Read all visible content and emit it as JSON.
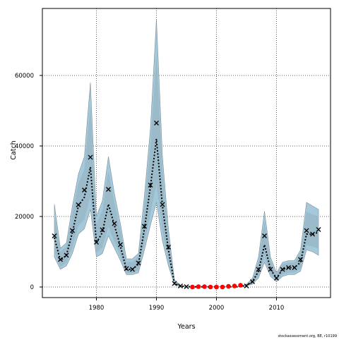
{
  "chart_data": {
    "type": "line",
    "title": "",
    "xlabel": "Years",
    "ylabel": "Catch",
    "xlim": [
      1971,
      2019
    ],
    "ylim": [
      -3000,
      79000
    ],
    "x_ticks": [
      1980,
      1990,
      2000,
      2010
    ],
    "y_ticks": [
      0,
      20000,
      40000,
      60000
    ],
    "grid": true,
    "grid_style": "dotted",
    "source_note": "stockassessment.org, BE, r10199",
    "colors": {
      "band_outer": "#9fc6d9",
      "band_inner": "#9ab8c8",
      "band_edge": "#7f8f99",
      "estimate_line": "#000000",
      "observed_marker": "#000000",
      "zero_marker": "#ff0000"
    },
    "series": [
      {
        "name": "",
        "style": "dotted-line",
        "x": [
          1973,
          1974,
          1975,
          1976,
          1977,
          1978,
          1979,
          1980,
          1981,
          1982,
          1983,
          1984,
          1985,
          1986,
          1987,
          1988,
          1989,
          1990,
          1991,
          1992,
          1993,
          1994,
          1995,
          1996,
          1997,
          1998,
          1999,
          2000,
          2001,
          2002,
          2003,
          2004,
          2005,
          2006,
          2007,
          2008,
          2009,
          2010,
          2011,
          2012,
          2013,
          2014,
          2015,
          2016,
          2017
        ],
        "values": [
          14000,
          7500,
          9000,
          15500,
          23000,
          25500,
          34000,
          12500,
          15500,
          23500,
          17500,
          11500,
          5000,
          5000,
          6500,
          16500,
          28500,
          42000,
          23000,
          10500,
          1000,
          300,
          100,
          50,
          50,
          50,
          50,
          50,
          50,
          50,
          50,
          100,
          500,
          1500,
          4500,
          12000,
          5000,
          2500,
          5000,
          5500,
          5500,
          7000,
          15000,
          15000,
          15500
        ]
      },
      {
        "name": "",
        "style": "band",
        "x": [
          1973,
          1974,
          1975,
          1976,
          1977,
          1978,
          1979,
          1980,
          1981,
          1982,
          1983,
          1984,
          1985,
          1986,
          1987,
          1988,
          1989,
          1990,
          1991,
          1992,
          1993,
          1994,
          1995,
          1996,
          1997,
          1998,
          1999,
          2000,
          2001,
          2002,
          2003,
          2004,
          2005,
          2006,
          2007,
          2008,
          2009,
          2010,
          2011,
          2012,
          2013,
          2014,
          2015,
          2016,
          2017
        ],
        "lower": [
          8500,
          5000,
          6000,
          9500,
          15000,
          16500,
          22000,
          8500,
          9500,
          14500,
          11000,
          7500,
          3500,
          3500,
          4000,
          10500,
          17500,
          24000,
          13000,
          6000,
          600,
          150,
          50,
          0,
          0,
          0,
          0,
          0,
          0,
          0,
          0,
          50,
          300,
          800,
          2500,
          7000,
          3000,
          1500,
          3000,
          3500,
          3500,
          4500,
          10500,
          10000,
          9000
        ],
        "upper": [
          23500,
          11000,
          12500,
          23000,
          32000,
          37000,
          58000,
          20000,
          24500,
          37000,
          26500,
          18000,
          8000,
          8000,
          9500,
          26000,
          45000,
          76000,
          37000,
          16500,
          2000,
          500,
          200,
          150,
          150,
          150,
          150,
          150,
          150,
          150,
          150,
          200,
          800,
          2500,
          8500,
          21500,
          8500,
          4000,
          7000,
          7500,
          7500,
          10500,
          24000,
          23000,
          22000
        ]
      },
      {
        "name": "",
        "style": "x-marker",
        "x": [
          1973,
          1974,
          1975,
          1976,
          1977,
          1978,
          1979,
          1980,
          1981,
          1982,
          1983,
          1984,
          1985,
          1986,
          1987,
          1988,
          1989,
          1990,
          1991,
          1992,
          1993,
          1994,
          1995,
          2005,
          2006,
          2007,
          2008,
          2009,
          2010,
          2011,
          2012,
          2013,
          2014,
          2015,
          2016,
          2017
        ],
        "values": [
          14500,
          7800,
          9000,
          16000,
          23300,
          27500,
          36800,
          12700,
          16200,
          27700,
          18000,
          12000,
          5200,
          5000,
          6800,
          17200,
          28900,
          46500,
          23400,
          11300,
          1000,
          300,
          100,
          300,
          1500,
          5000,
          14500,
          5000,
          2500,
          5000,
          5500,
          5500,
          7800,
          16000,
          15000,
          16300
        ]
      },
      {
        "name": "",
        "style": "red-dot",
        "x": [
          1996,
          1997,
          1998,
          1999,
          2000,
          2001,
          2002,
          2003,
          2004
        ],
        "values": [
          0,
          100,
          100,
          0,
          0,
          0,
          200,
          300,
          500
        ]
      }
    ]
  }
}
